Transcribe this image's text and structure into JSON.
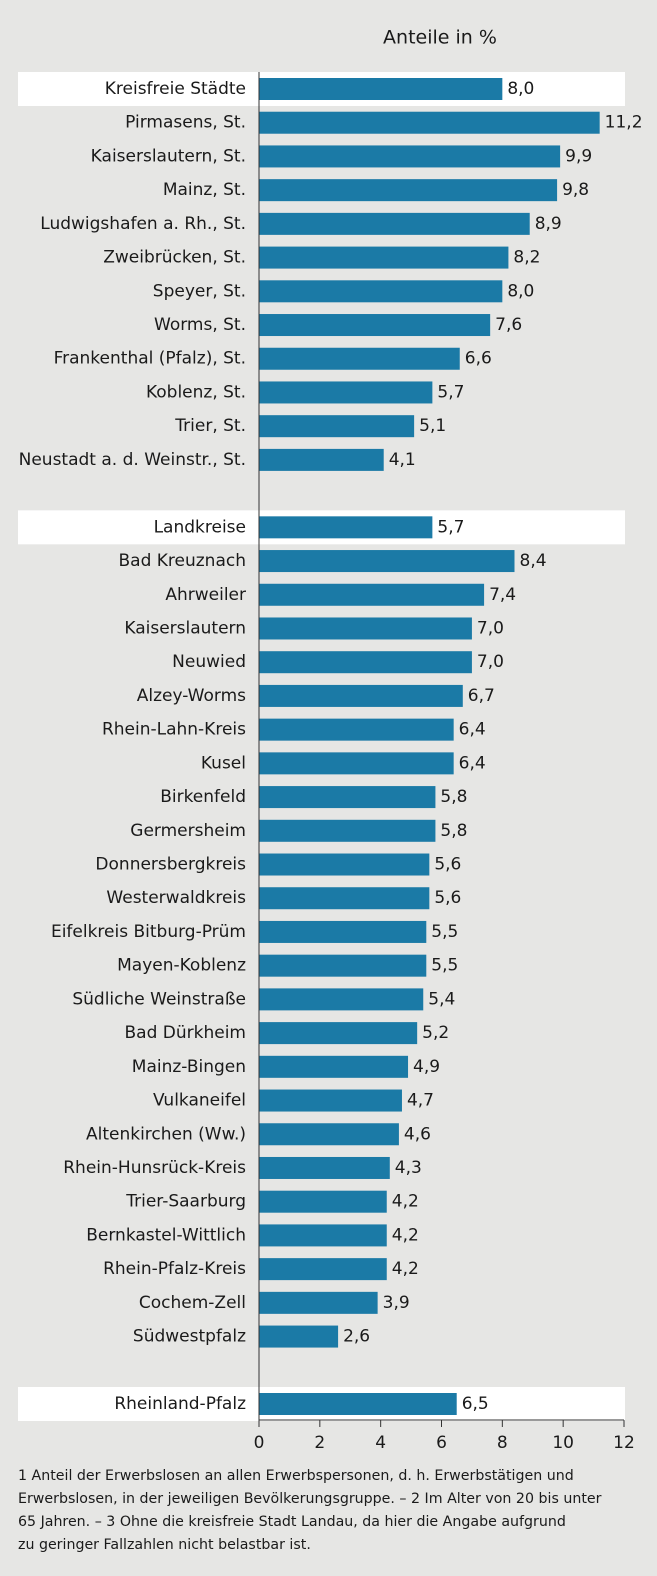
{
  "chart_data": {
    "type": "barh",
    "title": "Anteile in %",
    "categories": [
      "Kreisfreie Städte",
      "Pirmasens, St.",
      "Kaiserslautern, St.",
      "Mainz, St.",
      "Ludwigshafen a. Rh., St.",
      "Zweibrücken, St.",
      "Speyer, St.",
      "Worms, St.",
      "Frankenthal (Pfalz), St.",
      "Koblenz, St.",
      "Trier, St.",
      "Neustadt a. d. Weinstr., St.",
      null,
      "Landkreise",
      "Bad Kreuznach",
      "Ahrweiler",
      "Kaiserslautern",
      "Neuwied",
      "Alzey-Worms",
      "Rhein-Lahn-Kreis",
      "Kusel",
      "Birkenfeld",
      "Germersheim",
      "Donnersbergkreis",
      "Westerwaldkreis",
      "Eifelkreis Bitburg-Prüm",
      "Mayen-Koblenz",
      "Südliche Weinstraße",
      "Bad Dürkheim",
      "Mainz-Bingen",
      "Vulkaneifel",
      "Altenkirchen (Ww.)",
      "Rhein-Hunsrück-Kreis",
      "Trier-Saarburg",
      "Bernkastel-Wittlich",
      "Rhein-Pfalz-Kreis",
      "Cochem-Zell",
      "Südwestpfalz",
      null,
      "Rheinland-Pfalz"
    ],
    "values": [
      8.0,
      11.2,
      9.9,
      9.8,
      8.9,
      8.2,
      8.0,
      7.6,
      6.6,
      5.7,
      5.1,
      4.1,
      null,
      5.7,
      8.4,
      7.4,
      7.0,
      7.0,
      6.7,
      6.4,
      6.4,
      5.8,
      5.8,
      5.6,
      5.6,
      5.5,
      5.5,
      5.4,
      5.2,
      4.9,
      4.7,
      4.6,
      4.3,
      4.2,
      4.2,
      4.2,
      3.9,
      2.6,
      null,
      6.5
    ],
    "value_labels": [
      "8,0",
      "11,2",
      "9,9",
      "9,8",
      "8,9",
      "8,2",
      "8,0",
      "7,6",
      "6,6",
      "5,7",
      "5,1",
      "4,1",
      null,
      "5,7",
      "8,4",
      "7,4",
      "7,0",
      "7,0",
      "6,7",
      "6,4",
      "6,4",
      "5,8",
      "5,8",
      "5,6",
      "5,6",
      "5,5",
      "5,5",
      "5,4",
      "5,2",
      "4,9",
      "4,7",
      "4,6",
      "4,3",
      "4,2",
      "4,2",
      "4,2",
      "3,9",
      "2,6",
      null,
      "6,5"
    ],
    "color": "#1b7aa6",
    "highlight": [
      0,
      13,
      39
    ],
    "xlim": [
      0,
      12
    ],
    "xticks": [
      0,
      2,
      4,
      6,
      8,
      10,
      12
    ],
    "footnote": [
      "1 Anteil der Erwerbslosen an allen Erwerbspersonen, d. h. Erwerbstätigen und",
      "Erwerbslosen, in der jeweiligen Bevölkerungsgruppe. – 2 Im Alter von 20 bis unter",
      "65 Jahren. – 3 Ohne die kreisfreie Stadt Landau, da hier die Angabe aufgrund",
      "zu geringer Fallzahlen nicht belastbar ist."
    ]
  }
}
